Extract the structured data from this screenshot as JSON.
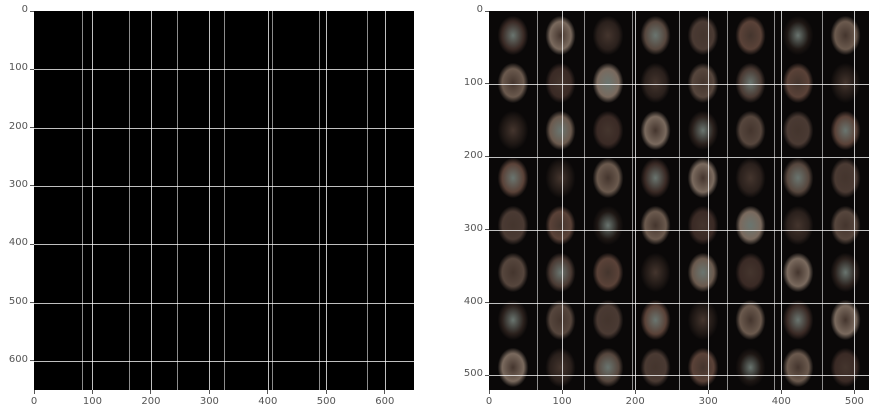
{
  "panels": [
    {
      "id": "left",
      "description_key": "mostly-black-grid",
      "x_ticks": [
        "0",
        "100",
        "200",
        "300",
        "400",
        "500",
        "600"
      ],
      "y_ticks": [
        "0",
        "100",
        "200",
        "300",
        "400",
        "500",
        "600"
      ],
      "xlim": [
        0,
        650
      ],
      "ylim": [
        650,
        0
      ],
      "grid": true,
      "tile_grid": [
        8,
        8
      ]
    },
    {
      "id": "right",
      "description_key": "face-grid",
      "x_ticks": [
        "0",
        "100",
        "200",
        "300",
        "400",
        "500"
      ],
      "y_ticks": [
        "0",
        "100",
        "200",
        "300",
        "400",
        "500"
      ],
      "xlim": [
        0,
        520
      ],
      "ylim": [
        520,
        0
      ],
      "grid": true,
      "tile_grid": [
        8,
        8
      ]
    }
  ],
  "colors": {
    "background": "#ffffff",
    "image_dark": "#000000",
    "gridline": "#ffffff",
    "tick_label": "#555555"
  }
}
